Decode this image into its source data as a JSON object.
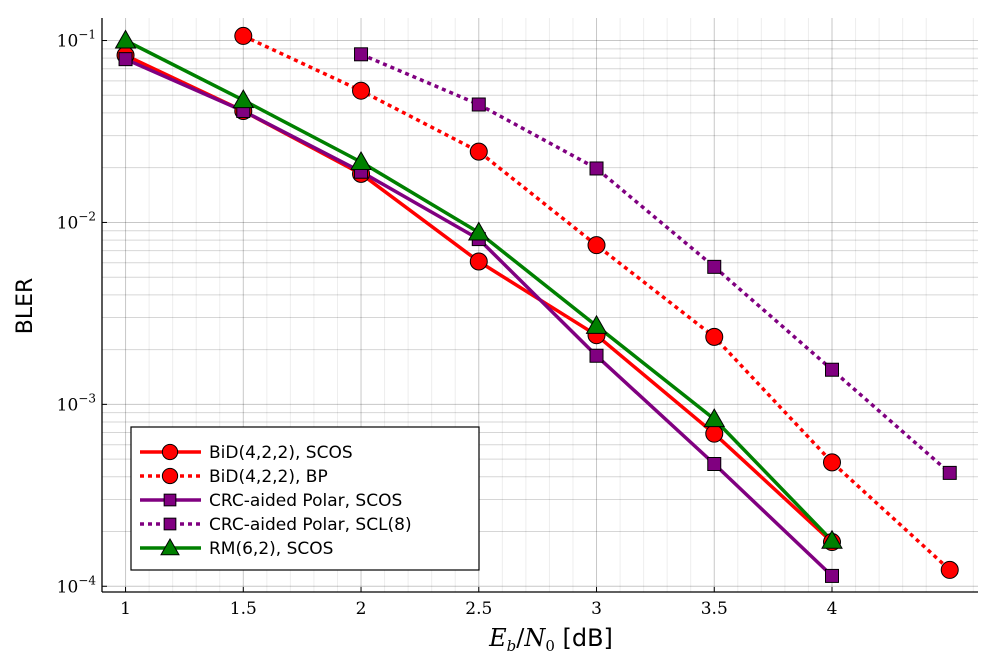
{
  "chart_data": {
    "type": "line",
    "title": "",
    "xlabel": "E_b/N_0 [dB]",
    "xlabel_parts": {
      "e": "E",
      "b": "b",
      "slash": "/",
      "n": "N",
      "zero": "0",
      "unit": " [dB]"
    },
    "ylabel": "BLER",
    "yscale": "log",
    "xlim": [
      0.9,
      4.62
    ],
    "ylim": [
      9.3e-05,
      0.133
    ],
    "x_ticks": [
      1,
      1.5,
      2,
      2.5,
      3,
      3.5,
      4
    ],
    "x_tick_labels": [
      "1",
      "1.5",
      "2",
      "2.5",
      "3",
      "3.5",
      "4"
    ],
    "y_ticks": [
      0.1,
      0.01,
      0.001,
      0.0001
    ],
    "y_tick_labels": [
      {
        "base": "10",
        "exp": "−1"
      },
      {
        "base": "10",
        "exp": "−2"
      },
      {
        "base": "10",
        "exp": "−3"
      },
      {
        "base": "10",
        "exp": "−4"
      }
    ],
    "grid": true,
    "legend_position": "bottom-left",
    "series": [
      {
        "name": "BiD(4,2,2), SCOS",
        "color": "#ff0000",
        "dash": "solid",
        "marker": "circle",
        "x": [
          1,
          1.5,
          2,
          2.5,
          3,
          3.5,
          4
        ],
        "y": [
          0.083,
          0.041,
          0.0185,
          0.0061,
          0.0024,
          0.00069,
          0.000175
        ]
      },
      {
        "name": "BiD(4,2,2), BP",
        "color": "#ff0000",
        "dash": "dotted",
        "marker": "circle",
        "x": [
          1.5,
          2,
          2.5,
          3,
          3.5,
          4,
          4.5
        ],
        "y": [
          0.106,
          0.053,
          0.0245,
          0.0075,
          0.00235,
          0.00048,
          0.000123
        ]
      },
      {
        "name": "CRC-aided Polar, SCOS",
        "color": "#800080",
        "dash": "solid",
        "marker": "square",
        "x": [
          1,
          1.5,
          2,
          2.5,
          3,
          3.5,
          4
        ],
        "y": [
          0.079,
          0.041,
          0.019,
          0.0081,
          0.00185,
          0.00047,
          0.000114
        ]
      },
      {
        "name": "CRC-aided Polar, SCL(8)",
        "color": "#800080",
        "dash": "dotted",
        "marker": "square",
        "x": [
          2,
          2.5,
          3,
          3.5,
          4,
          4.5
        ],
        "y": [
          0.084,
          0.0445,
          0.0198,
          0.0057,
          0.00155,
          0.00042
        ]
      },
      {
        "name": "RM(6,2), SCOS",
        "color": "#008000",
        "dash": "solid",
        "marker": "triangle",
        "x": [
          1,
          1.5,
          2,
          2.5,
          3,
          3.5,
          4
        ],
        "y": [
          0.1,
          0.047,
          0.0215,
          0.0088,
          0.0027,
          0.00083,
          0.000178
        ]
      }
    ]
  }
}
